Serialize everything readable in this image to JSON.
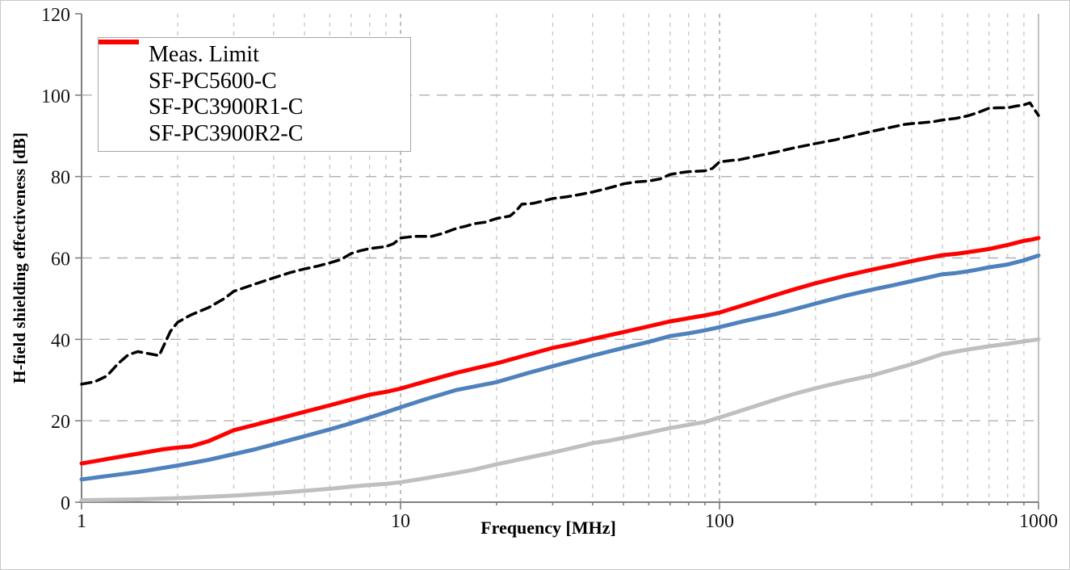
{
  "chart_data": {
    "type": "line",
    "title": "",
    "xlabel": "Frequency [MHz]",
    "ylabel": "H-field shielding effectiveness [dB]",
    "x_scale": "log",
    "x_range": [
      1,
      1000
    ],
    "y_range": [
      0,
      120
    ],
    "y_tick_step": 20,
    "x_ticks": [
      "1",
      "10",
      "100",
      "1000"
    ],
    "y_ticks": [
      "0",
      "20",
      "40",
      "60",
      "80",
      "100",
      "120"
    ],
    "grid": true,
    "legend_position": "top-left",
    "axis_color": "#7f7f7f",
    "series": [
      {
        "name": "Meas. Limit",
        "color": "#000000",
        "dash": "dashed",
        "width": 3.5,
        "points": [
          [
            1,
            29
          ],
          [
            1.1,
            29.6
          ],
          [
            1.2,
            31
          ],
          [
            1.3,
            34
          ],
          [
            1.4,
            36.2
          ],
          [
            1.5,
            37
          ],
          [
            1.65,
            36.4
          ],
          [
            1.75,
            36
          ],
          [
            1.9,
            42
          ],
          [
            2,
            44.2
          ],
          [
            2.2,
            46
          ],
          [
            2.5,
            47.8
          ],
          [
            2.8,
            50
          ],
          [
            3,
            51.8
          ],
          [
            3.5,
            53.6
          ],
          [
            4,
            55.1
          ],
          [
            4.5,
            56.4
          ],
          [
            5,
            57.3
          ],
          [
            5.5,
            58
          ],
          [
            6,
            58.8
          ],
          [
            6.5,
            59.6
          ],
          [
            7,
            61.1
          ],
          [
            7.5,
            61.8
          ],
          [
            8,
            62.3
          ],
          [
            9,
            62.8
          ],
          [
            9.5,
            63.5
          ],
          [
            10,
            64.9
          ],
          [
            11,
            65.3
          ],
          [
            12.5,
            65.3
          ],
          [
            13.5,
            66
          ],
          [
            15,
            67.3
          ],
          [
            16,
            67.8
          ],
          [
            17,
            68.4
          ],
          [
            18.5,
            68.8
          ],
          [
            20,
            69.7
          ],
          [
            22,
            70.3
          ],
          [
            23,
            71.5
          ],
          [
            24,
            73.2
          ],
          [
            26,
            73.4
          ],
          [
            28,
            74
          ],
          [
            30,
            74.6
          ],
          [
            33,
            75
          ],
          [
            36,
            75.5
          ],
          [
            40,
            76.2
          ],
          [
            44,
            77
          ],
          [
            48,
            77.8
          ],
          [
            50,
            78.2
          ],
          [
            55,
            78.7
          ],
          [
            60,
            78.9
          ],
          [
            65,
            79.4
          ],
          [
            70,
            80.5
          ],
          [
            75,
            80.9
          ],
          [
            80,
            81.2
          ],
          [
            85,
            81.3
          ],
          [
            90,
            81.4
          ],
          [
            95,
            82
          ],
          [
            100,
            83.6
          ],
          [
            110,
            84
          ],
          [
            115,
            84.1
          ],
          [
            130,
            85
          ],
          [
            150,
            86
          ],
          [
            170,
            87
          ],
          [
            200,
            88.1
          ],
          [
            230,
            89
          ],
          [
            260,
            90
          ],
          [
            300,
            91.1
          ],
          [
            340,
            92
          ],
          [
            380,
            92.8
          ],
          [
            400,
            93
          ],
          [
            430,
            93.2
          ],
          [
            470,
            93.5
          ],
          [
            500,
            93.9
          ],
          [
            550,
            94.3
          ],
          [
            600,
            94.9
          ],
          [
            650,
            95.8
          ],
          [
            700,
            96.8
          ],
          [
            750,
            96.9
          ],
          [
            800,
            96.9
          ],
          [
            850,
            97.3
          ],
          [
            900,
            97.6
          ],
          [
            940,
            98.1
          ],
          [
            1000,
            95
          ]
        ]
      },
      {
        "name": "SF-PC5600-C",
        "color": "#bfbfbf",
        "dash": "solid",
        "width": 5,
        "points": [
          [
            1,
            0.5
          ],
          [
            1.5,
            0.7
          ],
          [
            2,
            1
          ],
          [
            2.5,
            1.3
          ],
          [
            3,
            1.6
          ],
          [
            4,
            2.2
          ],
          [
            5,
            2.8
          ],
          [
            6,
            3.3
          ],
          [
            7,
            3.8
          ],
          [
            8,
            4.2
          ],
          [
            9,
            4.5
          ],
          [
            10,
            4.9
          ],
          [
            12,
            5.9
          ],
          [
            15,
            7.2
          ],
          [
            17,
            8
          ],
          [
            20,
            9.3
          ],
          [
            25,
            10.9
          ],
          [
            30,
            12.2
          ],
          [
            35,
            13.4
          ],
          [
            40,
            14.5
          ],
          [
            45,
            15.1
          ],
          [
            50,
            15.8
          ],
          [
            60,
            17.1
          ],
          [
            70,
            18.2
          ],
          [
            80,
            19
          ],
          [
            90,
            19.7
          ],
          [
            100,
            20.8
          ],
          [
            120,
            22.8
          ],
          [
            150,
            25.2
          ],
          [
            170,
            26.5
          ],
          [
            200,
            28
          ],
          [
            250,
            29.8
          ],
          [
            300,
            31.1
          ],
          [
            350,
            32.6
          ],
          [
            400,
            33.9
          ],
          [
            450,
            35.2
          ],
          [
            500,
            36.4
          ],
          [
            560,
            37.1
          ],
          [
            600,
            37.5
          ],
          [
            700,
            38.3
          ],
          [
            800,
            38.9
          ],
          [
            900,
            39.5
          ],
          [
            1000,
            40
          ]
        ]
      },
      {
        "name": "SF-PC3900R1-C",
        "color": "#4f81bd",
        "dash": "solid",
        "width": 5,
        "points": [
          [
            1,
            5.6
          ],
          [
            1.2,
            6.4
          ],
          [
            1.5,
            7.4
          ],
          [
            2,
            9
          ],
          [
            2.5,
            10.4
          ],
          [
            3,
            11.8
          ],
          [
            3.5,
            13
          ],
          [
            4,
            14.2
          ],
          [
            5,
            16.2
          ],
          [
            6,
            17.9
          ],
          [
            7,
            19.4
          ],
          [
            8,
            20.8
          ],
          [
            9,
            22.1
          ],
          [
            10,
            23.3
          ],
          [
            12,
            25.3
          ],
          [
            15,
            27.6
          ],
          [
            17,
            28.4
          ],
          [
            20,
            29.5
          ],
          [
            25,
            31.7
          ],
          [
            30,
            33.4
          ],
          [
            35,
            34.8
          ],
          [
            40,
            36
          ],
          [
            50,
            37.9
          ],
          [
            60,
            39.4
          ],
          [
            70,
            40.8
          ],
          [
            80,
            41.5
          ],
          [
            90,
            42.2
          ],
          [
            100,
            43
          ],
          [
            120,
            44.5
          ],
          [
            150,
            46.2
          ],
          [
            170,
            47.3
          ],
          [
            200,
            48.8
          ],
          [
            250,
            50.8
          ],
          [
            300,
            52.2
          ],
          [
            350,
            53.3
          ],
          [
            400,
            54.3
          ],
          [
            450,
            55.2
          ],
          [
            500,
            56
          ],
          [
            550,
            56.3
          ],
          [
            600,
            56.7
          ],
          [
            650,
            57.2
          ],
          [
            700,
            57.7
          ],
          [
            800,
            58.4
          ],
          [
            900,
            59.4
          ],
          [
            1000,
            60.6
          ]
        ]
      },
      {
        "name": "SF-PC3900R2-C",
        "color": "#fe0000",
        "dash": "solid",
        "width": 5,
        "points": [
          [
            1,
            9.5
          ],
          [
            1.2,
            10.6
          ],
          [
            1.5,
            11.9
          ],
          [
            1.8,
            13
          ],
          [
            2,
            13.4
          ],
          [
            2.2,
            13.7
          ],
          [
            2.5,
            15
          ],
          [
            3,
            17.7
          ],
          [
            3.5,
            19
          ],
          [
            4,
            20.2
          ],
          [
            5,
            22.2
          ],
          [
            6,
            23.8
          ],
          [
            7,
            25.2
          ],
          [
            8,
            26.4
          ],
          [
            9,
            27.1
          ],
          [
            10,
            27.9
          ],
          [
            12,
            29.7
          ],
          [
            15,
            31.8
          ],
          [
            17,
            32.8
          ],
          [
            20,
            34.1
          ],
          [
            25,
            36.2
          ],
          [
            30,
            37.9
          ],
          [
            35,
            39
          ],
          [
            40,
            40.1
          ],
          [
            50,
            41.8
          ],
          [
            60,
            43.2
          ],
          [
            70,
            44.4
          ],
          [
            80,
            45.2
          ],
          [
            90,
            45.9
          ],
          [
            100,
            46.6
          ],
          [
            120,
            48.5
          ],
          [
            150,
            50.9
          ],
          [
            170,
            52.2
          ],
          [
            200,
            53.8
          ],
          [
            250,
            55.7
          ],
          [
            300,
            57.1
          ],
          [
            350,
            58.2
          ],
          [
            400,
            59.2
          ],
          [
            450,
            60
          ],
          [
            500,
            60.7
          ],
          [
            550,
            61
          ],
          [
            600,
            61.4
          ],
          [
            650,
            61.8
          ],
          [
            700,
            62.2
          ],
          [
            800,
            63.2
          ],
          [
            900,
            64.2
          ],
          [
            950,
            64.5
          ],
          [
            1000,
            64.9
          ]
        ]
      }
    ]
  }
}
